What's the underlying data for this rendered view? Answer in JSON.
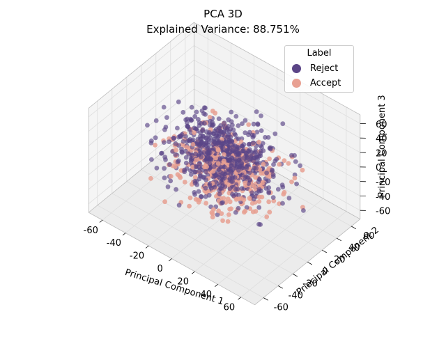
{
  "chart_data": {
    "type": "scatter",
    "projection": "3d",
    "title_lines": [
      "PCA 3D",
      "Explained Variance: 88.751%"
    ],
    "xlabel": "Principal Component 1",
    "ylabel": "Principal Component 2",
    "zlabel": "Principal Component 3",
    "xticks": [
      -60,
      -40,
      -20,
      0,
      20,
      40,
      60
    ],
    "yticks": [
      -60,
      -40,
      -20,
      0,
      20,
      40,
      60
    ],
    "zticks": [
      -60,
      -40,
      -20,
      0,
      20,
      40,
      60
    ],
    "xlim": [
      -72,
      72
    ],
    "ylim": [
      -72,
      72
    ],
    "zlim": [
      -72,
      72
    ],
    "grid": true,
    "legend": {
      "title": "Label",
      "placement": "top-right",
      "entries": [
        {
          "label": "Reject",
          "color": "#5b4587"
        },
        {
          "label": "Accept",
          "color": "#e8a092"
        }
      ]
    },
    "series": [
      {
        "name": "Reject",
        "color": "#5b4587",
        "alpha": 0.65
      },
      {
        "name": "Accept",
        "color": "#e8a092",
        "alpha": 0.85
      }
    ],
    "pane_color": "#f2f2f2",
    "grid_color": "#dddddd"
  }
}
